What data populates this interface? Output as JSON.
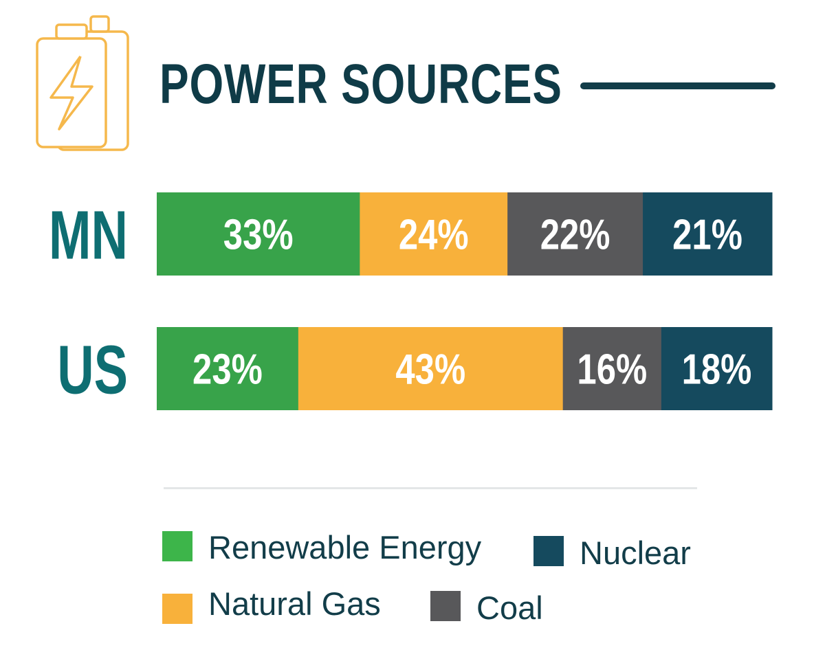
{
  "title": "POWER SOURCES",
  "colors": {
    "renewable": "#38a34a",
    "natural_gas": "#f8b13b",
    "coal": "#58585a",
    "nuclear": "#154a5e",
    "title": "#0f3b47",
    "row_label": "#0e6e72",
    "icon": "#f5b84c"
  },
  "icon": "battery-bolt-icon",
  "legend": {
    "items": [
      {
        "label": "Renewable Energy",
        "color": "#3db54a"
      },
      {
        "label": "Nuclear",
        "color": "#154a5e"
      },
      {
        "label": "Natural Gas",
        "color": "#f8b13b"
      },
      {
        "label": "Coal",
        "color": "#58585a"
      }
    ]
  },
  "chart_data": {
    "type": "bar",
    "orientation": "horizontal",
    "stacked": true,
    "categories": [
      "MN",
      "US"
    ],
    "series": [
      {
        "name": "Renewable Energy",
        "values": [
          33,
          23
        ],
        "labels": [
          "33%",
          "23%"
        ],
        "color": "#38a34a"
      },
      {
        "name": "Natural Gas",
        "values": [
          24,
          43
        ],
        "labels": [
          "24%",
          "43%"
        ],
        "color": "#f8b13b"
      },
      {
        "name": "Coal",
        "values": [
          22,
          16
        ],
        "labels": [
          "22%",
          "16%"
        ],
        "color": "#58585a"
      },
      {
        "name": "Nuclear",
        "values": [
          21,
          18
        ],
        "labels": [
          "21%",
          "18%"
        ],
        "color": "#154a5e"
      }
    ],
    "title": "POWER SOURCES",
    "xlabel": "",
    "ylabel": "",
    "legend_position": "bottom"
  }
}
